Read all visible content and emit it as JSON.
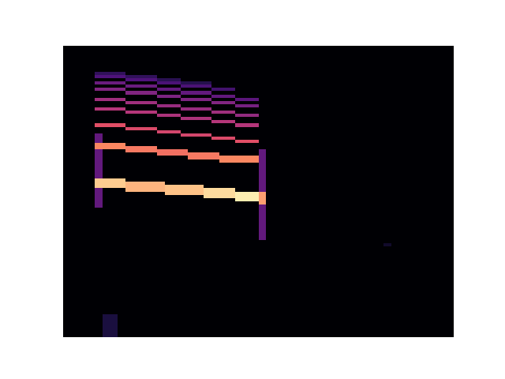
{
  "chart_data": {
    "type": "heatmap",
    "xlim": [
      0,
      50
    ],
    "ylim": [
      0,
      90
    ],
    "color_range": [
      0,
      1
    ],
    "tick_labels": false,
    "cells": [
      [
        4,
        4,
        40,
        62,
        0.3
      ],
      [
        25,
        25,
        30,
        57,
        0.3
      ],
      [
        5,
        6,
        0,
        6,
        0.12
      ],
      [
        41,
        41,
        28,
        28,
        0.08
      ],
      [
        4,
        7,
        46,
        48,
        0.9
      ],
      [
        8,
        12,
        45,
        47,
        0.85
      ],
      [
        13,
        17,
        44,
        46,
        0.88
      ],
      [
        18,
        21,
        43,
        45,
        0.93
      ],
      [
        22,
        24,
        42,
        44,
        0.97
      ],
      [
        25,
        25,
        41,
        44,
        0.8
      ],
      [
        4,
        7,
        58,
        59,
        0.75
      ],
      [
        8,
        11,
        57,
        58,
        0.72
      ],
      [
        12,
        15,
        56,
        57,
        0.7
      ],
      [
        16,
        19,
        55,
        56,
        0.72
      ],
      [
        20,
        24,
        54,
        55,
        0.75
      ],
      [
        4,
        7,
        65,
        65,
        0.62
      ],
      [
        8,
        11,
        64,
        64,
        0.6
      ],
      [
        12,
        14,
        63,
        63,
        0.58
      ],
      [
        15,
        18,
        62,
        62,
        0.58
      ],
      [
        19,
        21,
        61,
        61,
        0.6
      ],
      [
        22,
        24,
        60,
        60,
        0.62
      ],
      [
        4,
        7,
        70,
        70,
        0.5
      ],
      [
        8,
        11,
        69,
        69,
        0.5
      ],
      [
        12,
        14,
        68,
        68,
        0.48
      ],
      [
        15,
        18,
        67,
        67,
        0.48
      ],
      [
        19,
        21,
        66,
        66,
        0.5
      ],
      [
        22,
        24,
        65,
        65,
        0.5
      ],
      [
        4,
        7,
        73,
        73,
        0.45
      ],
      [
        8,
        11,
        72,
        72,
        0.45
      ],
      [
        12,
        14,
        71,
        71,
        0.43
      ],
      [
        15,
        18,
        70,
        70,
        0.43
      ],
      [
        19,
        21,
        69,
        69,
        0.45
      ],
      [
        22,
        24,
        68,
        68,
        0.42
      ],
      [
        4,
        7,
        76,
        76,
        0.38
      ],
      [
        8,
        11,
        75,
        75,
        0.38
      ],
      [
        12,
        14,
        74,
        74,
        0.37
      ],
      [
        15,
        18,
        73,
        73,
        0.37
      ],
      [
        19,
        21,
        72,
        72,
        0.38
      ],
      [
        22,
        24,
        71,
        71,
        0.35
      ],
      [
        4,
        7,
        78,
        78,
        0.32
      ],
      [
        8,
        11,
        77,
        77,
        0.32
      ],
      [
        12,
        14,
        76,
        76,
        0.3
      ],
      [
        15,
        18,
        75,
        75,
        0.3
      ],
      [
        19,
        21,
        74,
        74,
        0.3
      ],
      [
        22,
        24,
        73,
        73,
        0.28
      ],
      [
        4,
        7,
        80,
        80,
        0.25
      ],
      [
        8,
        11,
        79,
        79,
        0.25
      ],
      [
        12,
        14,
        78,
        78,
        0.24
      ],
      [
        15,
        18,
        77,
        77,
        0.24
      ],
      [
        19,
        21,
        76,
        76,
        0.22
      ],
      [
        4,
        7,
        81,
        81,
        0.18
      ],
      [
        8,
        11,
        80,
        80,
        0.18
      ],
      [
        12,
        14,
        79,
        79,
        0.16
      ],
      [
        15,
        18,
        78,
        78,
        0.15
      ]
    ]
  }
}
